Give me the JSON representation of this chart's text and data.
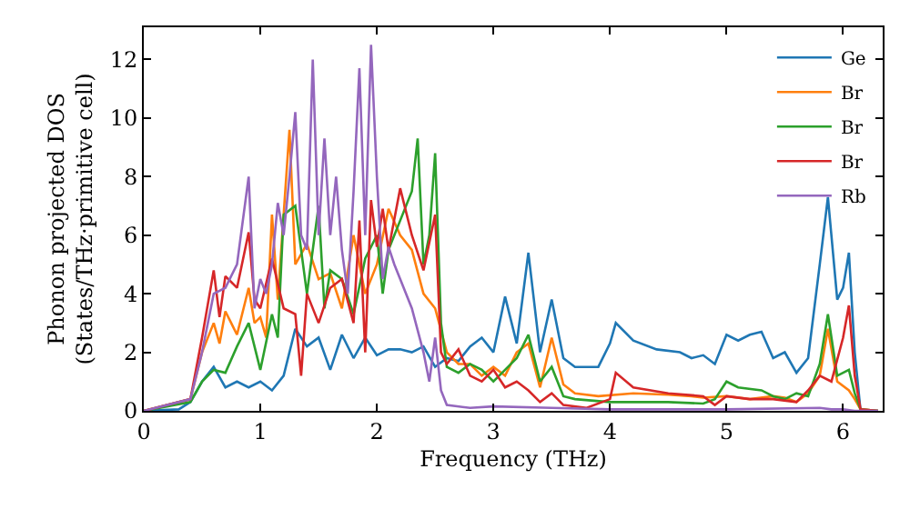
{
  "chart_data": {
    "type": "line",
    "xlabel": "Frequency (THz)",
    "ylabel": "Phonon projected DOS\n(States/THz·primitive cell)",
    "xlim": [
      0,
      6.34
    ],
    "ylim": [
      0,
      13.1
    ],
    "xticks": [
      0,
      1,
      2,
      3,
      4,
      5,
      6
    ],
    "yticks": [
      0,
      2,
      4,
      6,
      8,
      10,
      12
    ],
    "grid": false,
    "legend": "top right",
    "marker": "none",
    "line_style": "solid",
    "series": [
      {
        "name": "Ge",
        "color": "#1f77b4",
        "x": [
          0,
          0.3,
          0.4,
          0.5,
          0.6,
          0.7,
          0.8,
          0.9,
          1.0,
          1.1,
          1.2,
          1.3,
          1.4,
          1.5,
          1.6,
          1.7,
          1.8,
          1.9,
          2.0,
          2.1,
          2.2,
          2.3,
          2.4,
          2.5,
          2.6,
          2.7,
          2.8,
          2.9,
          3.0,
          3.1,
          3.2,
          3.3,
          3.4,
          3.5,
          3.6,
          3.7,
          3.8,
          3.9,
          4.0,
          4.05,
          4.2,
          4.4,
          4.6,
          4.7,
          4.8,
          4.9,
          5.0,
          5.1,
          5.2,
          5.3,
          5.4,
          5.5,
          5.6,
          5.7,
          5.8,
          5.87,
          5.95,
          6.0,
          6.05,
          6.1,
          6.15,
          6.3
        ],
        "values": [
          0,
          0.05,
          0.3,
          1.0,
          1.5,
          0.8,
          1.0,
          0.8,
          1.0,
          0.7,
          1.2,
          2.8,
          2.2,
          2.5,
          1.4,
          2.6,
          1.8,
          2.5,
          1.9,
          2.1,
          2.1,
          2.0,
          2.2,
          1.5,
          1.8,
          1.7,
          2.2,
          2.5,
          2.0,
          3.9,
          2.3,
          5.4,
          2.0,
          3.8,
          1.8,
          1.5,
          1.5,
          1.5,
          2.3,
          3.0,
          2.4,
          2.1,
          2.0,
          1.8,
          1.9,
          1.6,
          2.6,
          2.4,
          2.6,
          2.7,
          1.8,
          2.0,
          1.3,
          1.8,
          5.0,
          7.3,
          3.8,
          4.2,
          5.4,
          2.0,
          0,
          0
        ]
      },
      {
        "name": "Br",
        "color": "#ff7f0e",
        "x": [
          0,
          0.4,
          0.5,
          0.6,
          0.65,
          0.7,
          0.8,
          0.9,
          0.95,
          1.0,
          1.05,
          1.1,
          1.15,
          1.25,
          1.3,
          1.4,
          1.5,
          1.6,
          1.7,
          1.8,
          1.9,
          2.0,
          2.1,
          2.2,
          2.3,
          2.4,
          2.5,
          2.6,
          2.7,
          2.8,
          2.9,
          3.0,
          3.1,
          3.2,
          3.3,
          3.4,
          3.5,
          3.6,
          3.7,
          3.9,
          4.2,
          4.5,
          4.7,
          4.8,
          5.0,
          5.2,
          5.4,
          5.5,
          5.6,
          5.7,
          5.8,
          5.87,
          5.95,
          6.05,
          6.1,
          6.15,
          6.3
        ],
        "values": [
          0,
          0.4,
          2.0,
          3.0,
          2.3,
          3.4,
          2.6,
          4.2,
          3.0,
          3.2,
          2.5,
          6.7,
          3.8,
          9.6,
          5.0,
          5.7,
          4.5,
          4.7,
          3.5,
          6.0,
          4.0,
          5.0,
          6.9,
          6.0,
          5.5,
          4.0,
          3.5,
          2.0,
          1.6,
          1.6,
          1.2,
          1.5,
          1.2,
          2.0,
          2.3,
          0.8,
          2.5,
          0.9,
          0.6,
          0.5,
          0.6,
          0.55,
          0.5,
          0.45,
          0.5,
          0.4,
          0.5,
          0.45,
          0.3,
          0.6,
          1.2,
          2.8,
          1.0,
          0.7,
          0.4,
          0.05,
          0
        ]
      },
      {
        "name": "Br",
        "color": "#2ca02c",
        "x": [
          0,
          0.4,
          0.5,
          0.6,
          0.7,
          0.8,
          0.9,
          1.0,
          1.1,
          1.15,
          1.2,
          1.3,
          1.4,
          1.5,
          1.55,
          1.6,
          1.7,
          1.8,
          1.9,
          2.0,
          2.05,
          2.1,
          2.2,
          2.3,
          2.35,
          2.4,
          2.45,
          2.5,
          2.55,
          2.6,
          2.7,
          2.8,
          2.9,
          3.0,
          3.1,
          3.2,
          3.3,
          3.4,
          3.5,
          3.6,
          3.7,
          4.0,
          4.5,
          4.8,
          4.9,
          5.0,
          5.1,
          5.3,
          5.4,
          5.5,
          5.6,
          5.7,
          5.8,
          5.87,
          5.95,
          6.05,
          6.1,
          6.15,
          6.3
        ],
        "values": [
          0,
          0.3,
          1.0,
          1.4,
          1.3,
          2.2,
          3.0,
          1.4,
          3.3,
          2.5,
          6.7,
          7.0,
          4.0,
          7.0,
          3.5,
          4.8,
          4.5,
          3.3,
          5.2,
          6.0,
          4.0,
          5.5,
          6.5,
          7.5,
          9.3,
          5.0,
          6.0,
          8.8,
          3.0,
          1.5,
          1.3,
          1.6,
          1.4,
          1.0,
          1.4,
          1.8,
          2.6,
          1.0,
          1.5,
          0.5,
          0.4,
          0.3,
          0.3,
          0.25,
          0.4,
          1.0,
          0.8,
          0.7,
          0.5,
          0.4,
          0.6,
          0.5,
          1.6,
          3.3,
          1.2,
          1.4,
          0.6,
          0.05,
          0
        ]
      },
      {
        "name": "Br",
        "color": "#d62728",
        "x": [
          0,
          0.4,
          0.5,
          0.6,
          0.65,
          0.7,
          0.8,
          0.9,
          0.95,
          1.0,
          1.1,
          1.2,
          1.3,
          1.35,
          1.4,
          1.5,
          1.6,
          1.7,
          1.8,
          1.85,
          1.9,
          1.95,
          2.0,
          2.05,
          2.1,
          2.2,
          2.3,
          2.4,
          2.5,
          2.55,
          2.6,
          2.7,
          2.8,
          2.9,
          3.0,
          3.1,
          3.2,
          3.3,
          3.4,
          3.5,
          3.6,
          3.8,
          4.0,
          4.05,
          4.2,
          4.5,
          4.8,
          4.9,
          5.0,
          5.2,
          5.4,
          5.6,
          5.7,
          5.8,
          5.9,
          6.0,
          6.05,
          6.1,
          6.15,
          6.3
        ],
        "values": [
          0,
          0.4,
          2.5,
          4.8,
          3.2,
          4.6,
          4.2,
          6.1,
          3.8,
          3.5,
          5.2,
          3.5,
          3.3,
          1.2,
          4.0,
          3.0,
          4.2,
          4.5,
          3.0,
          6.5,
          2.0,
          7.2,
          5.6,
          6.9,
          5.5,
          7.6,
          6.0,
          4.8,
          6.7,
          2.0,
          1.6,
          2.1,
          1.2,
          1.0,
          1.4,
          0.8,
          1.0,
          0.7,
          0.3,
          0.6,
          0.2,
          0.1,
          0.4,
          1.3,
          0.8,
          0.6,
          0.5,
          0.2,
          0.5,
          0.4,
          0.4,
          0.3,
          0.7,
          1.2,
          1.0,
          2.5,
          3.6,
          1.2,
          0.05,
          0
        ]
      },
      {
        "name": "Rb",
        "color": "#9467bd",
        "x": [
          0,
          0.4,
          0.5,
          0.6,
          0.7,
          0.8,
          0.9,
          0.95,
          1.0,
          1.05,
          1.1,
          1.15,
          1.2,
          1.25,
          1.3,
          1.35,
          1.4,
          1.45,
          1.5,
          1.55,
          1.6,
          1.65,
          1.7,
          1.75,
          1.8,
          1.85,
          1.9,
          1.95,
          2.0,
          2.05,
          2.1,
          2.15,
          2.2,
          2.3,
          2.4,
          2.45,
          2.5,
          2.55,
          2.6,
          2.8,
          3.0,
          3.5,
          4.0,
          5.0,
          5.8,
          5.9,
          6.0,
          6.1,
          6.3
        ],
        "values": [
          0,
          0.4,
          2.0,
          4.0,
          4.2,
          5.0,
          8.0,
          3.5,
          4.5,
          4.0,
          5.0,
          7.1,
          6.0,
          8.0,
          10.2,
          6.0,
          5.5,
          12.0,
          6.0,
          9.3,
          6.0,
          8.0,
          5.5,
          4.0,
          7.5,
          11.7,
          6.0,
          12.5,
          8.0,
          4.5,
          5.6,
          5.0,
          4.5,
          3.5,
          2.0,
          1.0,
          2.5,
          0.7,
          0.2,
          0.1,
          0.15,
          0.1,
          0.05,
          0.05,
          0.1,
          0.05,
          0.05,
          0,
          0
        ]
      }
    ]
  }
}
